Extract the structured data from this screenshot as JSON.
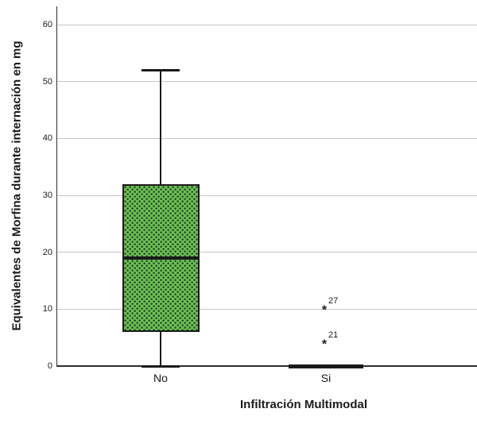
{
  "chart_data": {
    "type": "boxplot",
    "xlabel": "Infiltración Multimodal",
    "ylabel": "Equivalentes de Morfina durante internación en mg",
    "ylim": [
      0,
      63
    ],
    "yticks": [
      0,
      10,
      20,
      30,
      40,
      50,
      60
    ],
    "grid": "horizontal",
    "categories": [
      "No",
      "Si"
    ],
    "series": [
      {
        "category": "No",
        "whisker_low": 0,
        "q1": 6,
        "median": 19,
        "q3": 32,
        "whisker_high": 52,
        "outliers": []
      },
      {
        "category": "Si",
        "whisker_low": 0,
        "q1": 0,
        "median": 0,
        "q3": 0,
        "whisker_high": 0,
        "outliers": [
          {
            "value": 10,
            "label": "27"
          },
          {
            "value": 4,
            "label": "21"
          }
        ]
      }
    ],
    "style": {
      "box_fill": "#6ebe55",
      "box_dot_color": "#1c4420",
      "box_border": "#1a1a1a",
      "median_color": "#1a1a1a",
      "grid_color": "#c6c6c6",
      "axis_color": "#2e2e2e",
      "background": "#ffffff"
    }
  }
}
